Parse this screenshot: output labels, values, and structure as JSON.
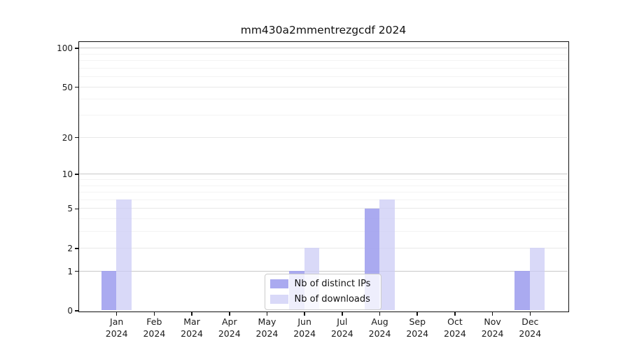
{
  "chart_data": {
    "type": "bar",
    "title": "mm430a2mmentrezgcdf 2024",
    "categories": [
      "Jan",
      "Feb",
      "Mar",
      "Apr",
      "May",
      "Jun",
      "Jul",
      "Aug",
      "Sep",
      "Oct",
      "Nov",
      "Dec"
    ],
    "x_year_label": "2024",
    "series": [
      {
        "name": "Nb of distinct IPs",
        "color": "#aaaaf0",
        "alpha": 0.88,
        "values": [
          1,
          0,
          0,
          0,
          0,
          1,
          0,
          5,
          0,
          0,
          0,
          1
        ]
      },
      {
        "name": "Nb of downloads",
        "color": "#d9d9f8",
        "alpha": 0.72,
        "values": [
          6,
          0,
          0,
          0,
          0,
          2,
          0,
          6,
          0,
          0,
          0,
          2
        ]
      }
    ],
    "xlabel": "",
    "ylabel": "",
    "y_scale": "log1p",
    "y_ticks": [
      0,
      1,
      2,
      5,
      10,
      20,
      50,
      100
    ],
    "ylim": [
      0,
      112
    ],
    "grid": true,
    "gridlines": {
      "major": [
        1,
        10,
        100
      ],
      "mid": [
        2,
        5,
        20,
        50
      ],
      "minor": [
        3,
        4,
        6,
        7,
        8,
        9,
        30,
        40,
        60,
        70,
        80,
        90
      ]
    },
    "grid_colors": {
      "major": "#c9c9c9",
      "mid": "#e8e8e8",
      "minor": "#f3f3f3"
    },
    "legend_position": "lower center inside"
  }
}
